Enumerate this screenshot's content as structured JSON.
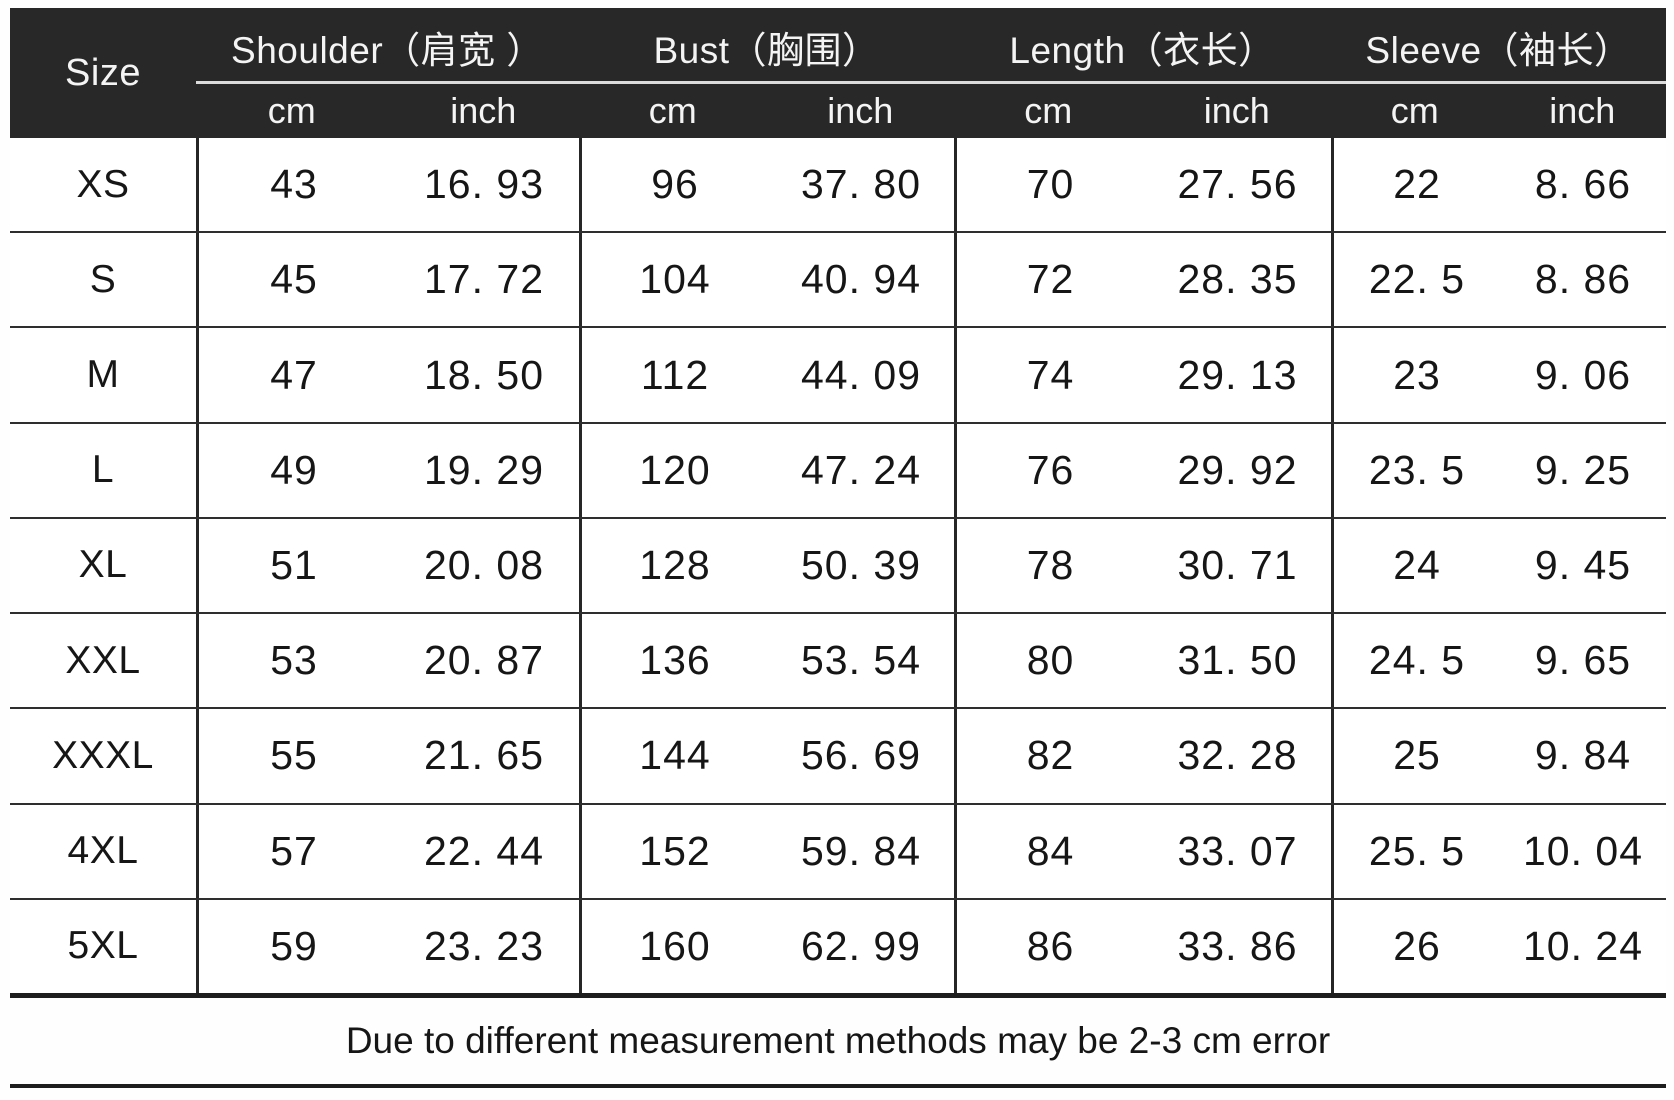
{
  "header": {
    "size_label": "Size",
    "groups": [
      {
        "label": "Shoulder（肩宽 ）",
        "units": [
          "cm",
          "inch"
        ]
      },
      {
        "label": "Bust（胸围）",
        "units": [
          "cm",
          "inch"
        ]
      },
      {
        "label": "Length（衣长）",
        "units": [
          "cm",
          "inch"
        ]
      },
      {
        "label": "Sleeve（袖长）",
        "units": [
          "cm",
          "inch"
        ]
      }
    ]
  },
  "rows": [
    {
      "size": "XS",
      "cells": [
        "43",
        "16. 93",
        "96",
        "37. 80",
        "70",
        "27. 56",
        "22",
        "8. 66"
      ]
    },
    {
      "size": "S",
      "cells": [
        "45",
        "17. 72",
        "104",
        "40. 94",
        "72",
        "28. 35",
        "22. 5",
        "8. 86"
      ]
    },
    {
      "size": "M",
      "cells": [
        "47",
        "18. 50",
        "112",
        "44. 09",
        "74",
        "29. 13",
        "23",
        "9. 06"
      ]
    },
    {
      "size": "L",
      "cells": [
        "49",
        "19. 29",
        "120",
        "47. 24",
        "76",
        "29. 92",
        "23. 5",
        "9. 25"
      ]
    },
    {
      "size": "XL",
      "cells": [
        "51",
        "20. 08",
        "128",
        "50. 39",
        "78",
        "30. 71",
        "24",
        "9. 45"
      ]
    },
    {
      "size": "XXL",
      "cells": [
        "53",
        "20. 87",
        "136",
        "53. 54",
        "80",
        "31. 50",
        "24. 5",
        "9. 65"
      ]
    },
    {
      "size": "XXXL",
      "cells": [
        "55",
        "21. 65",
        "144",
        "56. 69",
        "82",
        "32. 28",
        "25",
        "9. 84"
      ]
    },
    {
      "size": "4XL",
      "cells": [
        "57",
        "22. 44",
        "152",
        "59. 84",
        "84",
        "33. 07",
        "25. 5",
        "10. 04"
      ]
    },
    {
      "size": "5XL",
      "cells": [
        "59",
        "23. 23",
        "160",
        "62. 99",
        "86",
        "33. 86",
        "26",
        "10. 24"
      ]
    }
  ],
  "footer": {
    "note": "Due to different measurement methods may be 2-3 cm error"
  },
  "colors": {
    "header_bg": "#282828",
    "header_text": "#f4f4f4",
    "header_rule": "#dcdcdc",
    "body_bg": "#ffffff",
    "body_text": "#161616",
    "grid_line": "#2e2e2e",
    "thick_line": "#1d1d1d"
  }
}
